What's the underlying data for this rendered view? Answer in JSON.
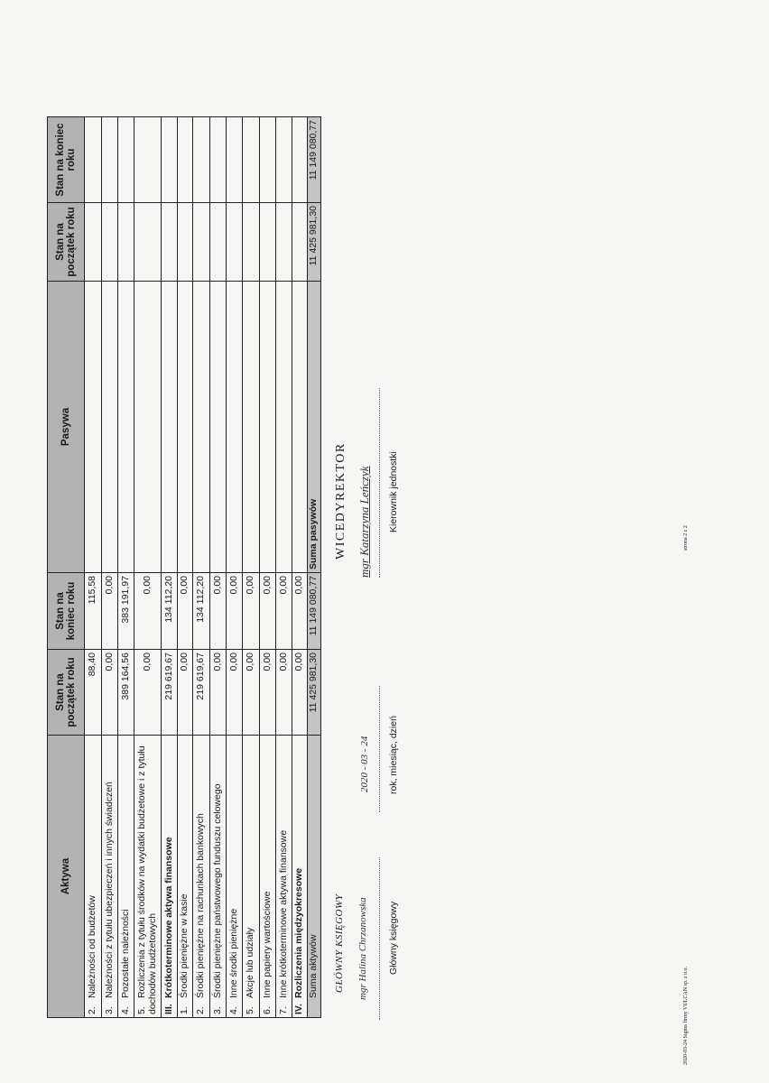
{
  "assets_table": {
    "headers": [
      "Aktywa",
      "Stan na początek roku",
      "Stan na koniec roku"
    ],
    "rows": [
      {
        "num": "2.",
        "label": "Należności od budżetów",
        "start": "88,40",
        "end": "115,58",
        "bold": false
      },
      {
        "num": "3.",
        "label": "Należności z tytułu ubezpieczeń i innych świadczeń",
        "start": "0,00",
        "end": "0,00",
        "bold": false
      },
      {
        "num": "4.",
        "label": "Pozostałe należności",
        "start": "389 164,56",
        "end": "383 191,97",
        "bold": false
      },
      {
        "num": "5.",
        "label": "Rozliczenia z tytułu środków na wydatki budżetowe i z tytułu dochodów budżetowych",
        "start": "0,00",
        "end": "0,00",
        "bold": false,
        "wrap": true
      },
      {
        "num": "III.",
        "label": "Krótkoterminowe aktywa finansowe",
        "start": "219 619,67",
        "end": "134 112,20",
        "bold": true
      },
      {
        "num": "1.",
        "label": "Środki pieniężne w kasie",
        "start": "0,00",
        "end": "0,00",
        "bold": false
      },
      {
        "num": "2.",
        "label": "Środki pieniężne na rachunkach bankowych",
        "start": "219 619,67",
        "end": "134 112,20",
        "bold": false
      },
      {
        "num": "3.",
        "label": "Środki pieniężne państwowego funduszu celowego",
        "start": "0,00",
        "end": "0,00",
        "bold": false
      },
      {
        "num": "4.",
        "label": "Inne środki pieniężne",
        "start": "0,00",
        "end": "0,00",
        "bold": false
      },
      {
        "num": "5.",
        "label": "Akcje lub udziały",
        "start": "0,00",
        "end": "0,00",
        "bold": false
      },
      {
        "num": "6.",
        "label": "Inne papiery wartościowe",
        "start": "0,00",
        "end": "0,00",
        "bold": false
      },
      {
        "num": "7.",
        "label": "Inne krótkoterminowe aktywa finansowe",
        "start": "0,00",
        "end": "0,00",
        "bold": false
      },
      {
        "num": "IV.",
        "label": "Rozliczenia międzyokresowe",
        "start": "0,00",
        "end": "0,00",
        "bold": true
      },
      {
        "num": "",
        "label": "Suma aktywów",
        "start": "11 425 981,30",
        "end": "11 149 080,77",
        "bold": false,
        "sum": true
      }
    ]
  },
  "liabilities_table": {
    "headers": [
      "Pasywa",
      "Stan na początek roku",
      "Stan na koniec roku"
    ],
    "rows": [
      {
        "label": "",
        "start": "",
        "end": ""
      },
      {
        "label": "",
        "start": "",
        "end": ""
      },
      {
        "label": "",
        "start": "",
        "end": ""
      },
      {
        "label": "",
        "start": "",
        "end": ""
      },
      {
        "label": "",
        "start": "",
        "end": ""
      },
      {
        "label": "",
        "start": "",
        "end": ""
      },
      {
        "label": "",
        "start": "",
        "end": ""
      },
      {
        "label": "",
        "start": "",
        "end": ""
      },
      {
        "label": "",
        "start": "",
        "end": ""
      },
      {
        "label": "",
        "start": "",
        "end": ""
      },
      {
        "label": "",
        "start": "",
        "end": ""
      },
      {
        "label": "",
        "start": "",
        "end": ""
      },
      {
        "label": "",
        "start": "",
        "end": ""
      },
      {
        "label": "Suma pasywów",
        "start": "11 425 981,30",
        "end": "11 149 080,77",
        "sum": true
      }
    ]
  },
  "signatures": {
    "accountant_stamp": "GŁÓWNY KSIĘGOWY",
    "accountant_name": "mgr Halina Chrzanowska",
    "accountant_caption": "Główny księgowy",
    "date_value": "2020 - 03 - 24",
    "date_caption": "rok, miesiąc, dzień",
    "director_stamp": "WICEDYREKTOR",
    "director_name": "mgr Katarzyna Leńczyk",
    "director_caption": "Kierownik jednostki"
  },
  "footer": {
    "left": "2020-03-24 Sigma firmy VULCAN sp. z o.o.",
    "page": "strona 2 z 2"
  }
}
